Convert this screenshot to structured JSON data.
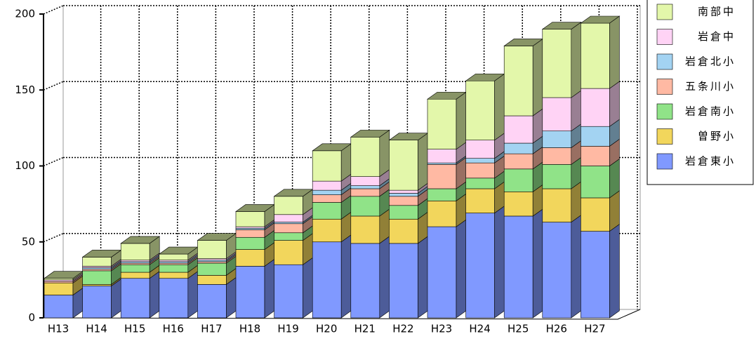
{
  "chart_data": {
    "type": "bar3d_stacked",
    "categories": [
      "H13",
      "H14",
      "H15",
      "H16",
      "H17",
      "H18",
      "H19",
      "H20",
      "H21",
      "H22",
      "H23",
      "H24",
      "H25",
      "H26",
      "H27"
    ],
    "series": [
      {
        "name": "岩倉東小",
        "color": "#8099ff",
        "values": [
          15,
          21,
          26,
          26,
          22,
          34,
          35,
          50,
          49,
          49,
          60,
          69,
          67,
          63,
          57
        ]
      },
      {
        "name": "曽野小",
        "color": "#f2d65c",
        "values": [
          8,
          1,
          4,
          4,
          6,
          11,
          16,
          15,
          18,
          16,
          17,
          16,
          16,
          22,
          22
        ]
      },
      {
        "name": "岩倉南小",
        "color": "#90e388",
        "values": [
          0,
          9,
          5,
          5,
          8,
          8,
          5,
          11,
          13,
          9,
          8,
          7,
          15,
          16,
          21
        ]
      },
      {
        "name": "五条川小",
        "color": "#ffb9a3",
        "values": [
          1,
          1,
          1,
          1,
          1,
          5,
          6,
          5,
          5,
          6,
          16,
          10,
          10,
          11,
          13
        ]
      },
      {
        "name": "岩倉北小",
        "color": "#a3d3f2",
        "values": [
          0,
          1,
          1,
          1,
          1,
          1,
          1,
          3,
          2,
          2,
          1,
          3,
          7,
          11,
          13
        ]
      },
      {
        "name": "岩倉中",
        "color": "#ffd3f5",
        "values": [
          1,
          1,
          1,
          1,
          1,
          1,
          5,
          6,
          6,
          2,
          9,
          12,
          18,
          22,
          25
        ]
      },
      {
        "name": "南部中",
        "color": "#e3f7aa",
        "values": [
          1,
          6,
          11,
          4,
          12,
          10,
          12,
          20,
          26,
          33,
          33,
          39,
          46,
          45,
          43
        ]
      }
    ],
    "ylim": [
      0,
      200
    ],
    "yticks": [
      0,
      50,
      100,
      150,
      200
    ],
    "grid": true,
    "legend": "right"
  }
}
